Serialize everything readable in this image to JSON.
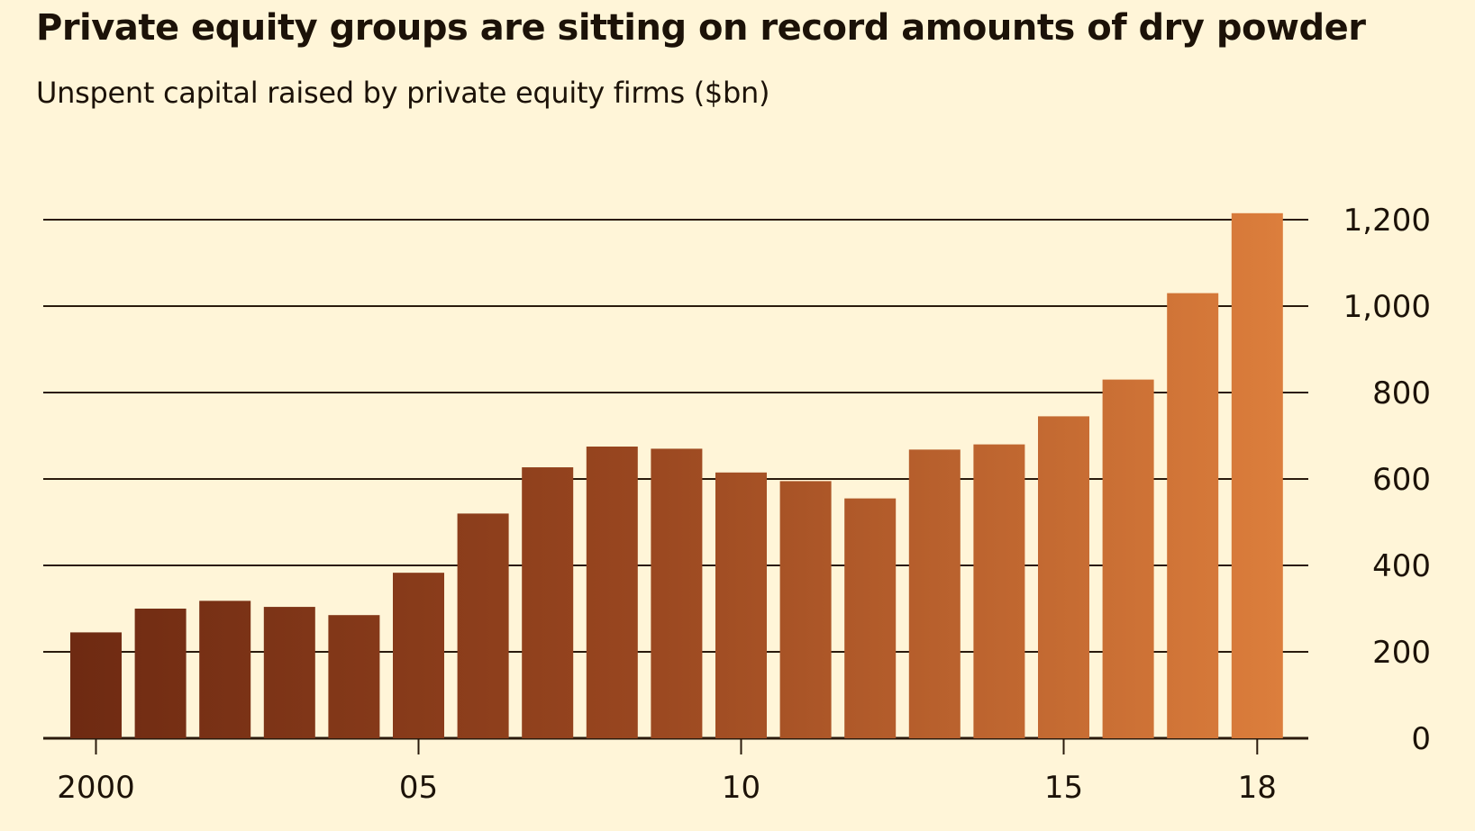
{
  "chart_data": {
    "type": "bar",
    "title": "Private equity groups are sitting on record amounts of dry powder",
    "subtitle": "Unspent capital raised by private equity firms ($bn)",
    "categories": [
      "2000",
      "2001",
      "2002",
      "2003",
      "2004",
      "2005",
      "2006",
      "2007",
      "2008",
      "2009",
      "2010",
      "2011",
      "2012",
      "2013",
      "2014",
      "2015",
      "2016",
      "2017",
      "2018"
    ],
    "values": [
      245,
      300,
      318,
      304,
      285,
      383,
      520,
      627,
      675,
      670,
      615,
      595,
      555,
      668,
      680,
      745,
      830,
      1030,
      1215
    ],
    "x_tick_labels": [
      {
        "category": "2000",
        "label": "2000"
      },
      {
        "category": "2005",
        "label": "05"
      },
      {
        "category": "2010",
        "label": "10"
      },
      {
        "category": "2015",
        "label": "15"
      },
      {
        "category": "2018",
        "label": "18"
      }
    ],
    "y_ticks": [
      0,
      200,
      400,
      600,
      800,
      1000,
      1200
    ],
    "y_tick_labels": [
      "0",
      "200",
      "400",
      "600",
      "800",
      "1,000",
      "1,200"
    ],
    "ylim": [
      0,
      1200
    ],
    "y_axis_side": "right",
    "grid": true,
    "colors": {
      "background": "#fff5d8",
      "bar_dark": "#6e2a12",
      "bar_light": "#dc7e3c",
      "gridline": "#2a1a0c"
    }
  }
}
